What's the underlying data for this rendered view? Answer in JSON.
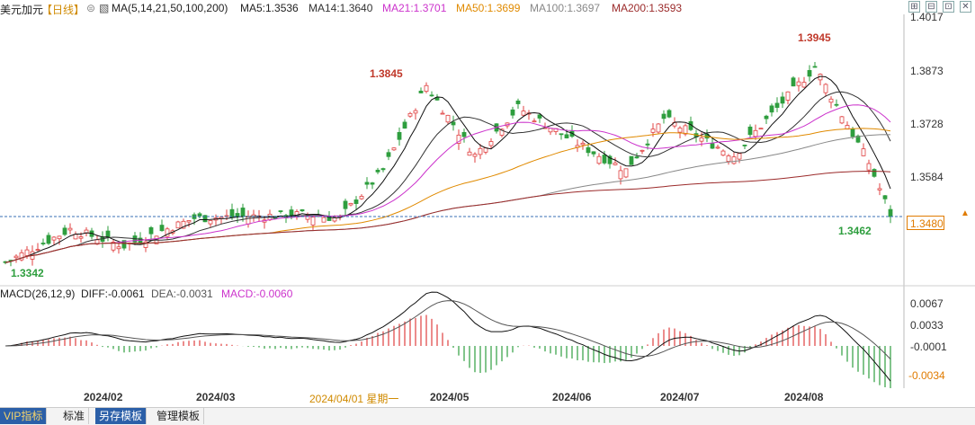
{
  "header": {
    "instrument": "美元加元",
    "period": "【日线】",
    "ma_params": "MA(5,14,21,50,100,200)",
    "ma5": "MA5:1.3536",
    "ma14": "MA14:1.3640",
    "ma21": "MA21:1.3701",
    "ma50": "MA50:1.3699",
    "ma100": "MA100:1.3697",
    "ma200": "MA200:1.3593"
  },
  "window_buttons": [
    "⊞",
    "⊟",
    "⊡",
    "✕"
  ],
  "price_axis": {
    "ticks": [
      "1.4017",
      "1.3873",
      "1.3728",
      "1.3584"
    ],
    "current_price": "1.3480"
  },
  "annotations": {
    "high_1": "1.3845",
    "high_2": "1.3945",
    "low_1": "1.3342",
    "low_2": "1.3462"
  },
  "macd_header": {
    "params": "MACD(26,12,9)",
    "diff": "DIFF:-0.0061",
    "dea": "DEA:-0.0031",
    "macd": "MACD:-0.0060"
  },
  "macd_axis": {
    "ticks": [
      "0.0067",
      "0.0033",
      "-0.0001"
    ],
    "current": "-0.0034"
  },
  "date_axis": {
    "labels": [
      "2024/02",
      "2024/03",
      "2024/05",
      "2024/06",
      "2024/07",
      "2024/08"
    ],
    "cursor": "2024/04/01 星期一"
  },
  "tabs": {
    "vip": "VIP指标",
    "standard": "标准",
    "save_template": "另存模板",
    "manage_template": "管理模板"
  },
  "colors": {
    "up": "#e04040",
    "down": "#2e9e3e",
    "ma5": "#111111",
    "ma14": "#333333",
    "ma21": "#cc33cc",
    "ma50": "#e08a00",
    "ma100": "#888888",
    "ma200": "#9b2a2a",
    "diff": "#111111",
    "dea": "#555555"
  }
}
